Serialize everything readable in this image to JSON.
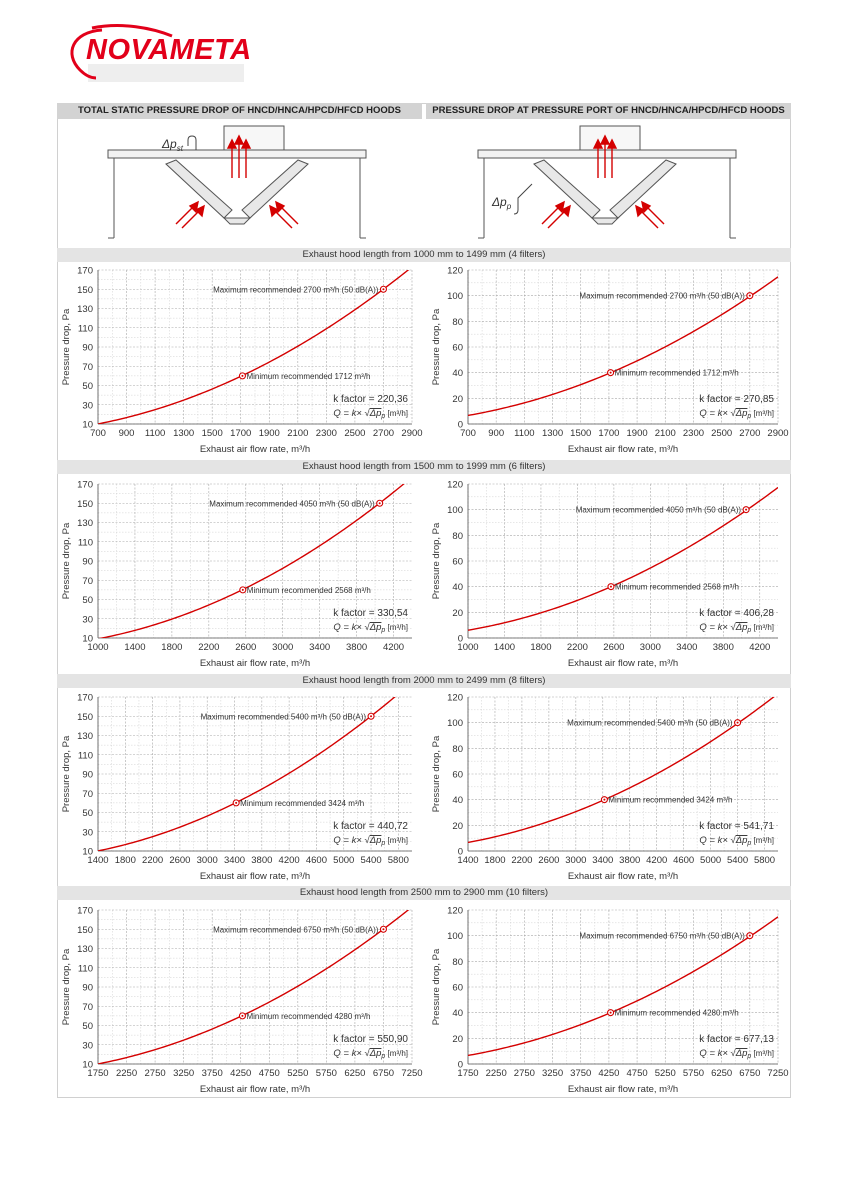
{
  "brand": {
    "name": "NOVAMETA",
    "color": "#e2001a"
  },
  "headers": {
    "left": "TOTAL STATIC PRESSURE DROP OF HNCD/HNCA/HPCD/HFCD HOODS",
    "right": "PRESSURE DROP AT PRESSURE PORT OF HNCD/HNCA/HPCD/HFCD HOODS"
  },
  "diagrams": {
    "left_symbol": "Δp",
    "left_subscript": "st",
    "right_symbol": "Δp",
    "right_subscript": "p"
  },
  "sections": [
    "Exhaust hood length from 1000 mm to 1499 mm (4 filters)",
    "Exhaust hood length from 1500 mm to 1999 mm (6 filters)",
    "Exhaust hood length from 2000 mm to 2499 mm (8 filters)",
    "Exhaust hood length from 2500 mm to 2900 mm (10 filters)"
  ],
  "formula": {
    "prefix": "Q = k× √",
    "radicand": "Δp",
    "subscript": "p",
    "unit": "[m³/h]"
  },
  "chart_data": [
    {
      "type": "line",
      "title": "",
      "xlabel": "Exhaust air flow rate, m³/h",
      "ylabel": "Pressure drop, Pa",
      "xlim": [
        700,
        2900
      ],
      "ylim": [
        10,
        170
      ],
      "xticks": [
        700,
        900,
        1100,
        1300,
        1500,
        1700,
        1900,
        2100,
        2300,
        2500,
        2700,
        2900
      ],
      "yticks": [
        10,
        30,
        50,
        70,
        90,
        110,
        130,
        150,
        170
      ],
      "k_label": "k factor = 220,36",
      "k": 220.36,
      "grid": true,
      "min_point": {
        "x": 1712,
        "y": 60,
        "label": "Minimum recommended 1712 m³/h"
      },
      "max_point": {
        "x": 2700,
        "y": 150,
        "label": "Maximum recommended 2700 m³/h (50 dB(A))"
      }
    },
    {
      "type": "line",
      "title": "",
      "xlabel": "Exhaust air flow rate, m³/h",
      "ylabel": "Pressure drop, Pa",
      "xlim": [
        700,
        2900
      ],
      "ylim": [
        0,
        120
      ],
      "xticks": [
        700,
        900,
        1100,
        1300,
        1500,
        1700,
        1900,
        2100,
        2300,
        2500,
        2700,
        2900
      ],
      "yticks": [
        0,
        20,
        40,
        60,
        80,
        100,
        120
      ],
      "k_label": "k factor = 270,85",
      "k": 270.85,
      "grid": true,
      "min_point": {
        "x": 1712,
        "y": 40,
        "label": "Minimum recommended 1712 m³/h"
      },
      "max_point": {
        "x": 2700,
        "y": 100,
        "label": "Maximum recommended 2700 m³/h (50 dB(A))"
      }
    },
    {
      "type": "line",
      "title": "",
      "xlabel": "Exhaust air flow rate, m³/h",
      "ylabel": "Pressure drop, Pa",
      "xlim": [
        1000,
        4400
      ],
      "ylim": [
        10,
        170
      ],
      "xticks": [
        1000,
        1400,
        1800,
        2200,
        2600,
        3000,
        3400,
        3800,
        4200
      ],
      "yticks": [
        10,
        30,
        50,
        70,
        90,
        110,
        130,
        150,
        170
      ],
      "k_label": "k factor = 330,54",
      "k": 330.54,
      "grid": true,
      "min_point": {
        "x": 2568,
        "y": 60,
        "label": "Minimum recommended 2568 m³/h"
      },
      "max_point": {
        "x": 4050,
        "y": 150,
        "label": "Maximum recommended 4050 m³/h (50 dB(A))"
      }
    },
    {
      "type": "line",
      "title": "",
      "xlabel": "Exhaust air flow rate, m³/h",
      "ylabel": "Pressure drop, Pa",
      "xlim": [
        1000,
        4400
      ],
      "ylim": [
        0,
        120
      ],
      "xticks": [
        1000,
        1400,
        1800,
        2200,
        2600,
        3000,
        3400,
        3800,
        4200
      ],
      "yticks": [
        0,
        20,
        40,
        60,
        80,
        100,
        120
      ],
      "k_label": "k factor = 406,28",
      "k": 406.28,
      "grid": true,
      "min_point": {
        "x": 2568,
        "y": 40,
        "label": "Minimum recommended 2568 m³/h"
      },
      "max_point": {
        "x": 4050,
        "y": 100,
        "label": "Maximum recommended 4050 m³/h (50 dB(A))"
      }
    },
    {
      "type": "line",
      "title": "",
      "xlabel": "Exhaust air flow rate, m³/h",
      "ylabel": "Pressure drop, Pa",
      "xlim": [
        1400,
        6000
      ],
      "ylim": [
        10,
        170
      ],
      "xticks": [
        1400,
        1800,
        2200,
        2600,
        3000,
        3400,
        3800,
        4200,
        4600,
        5000,
        5400,
        5800
      ],
      "yticks": [
        10,
        30,
        50,
        70,
        90,
        110,
        130,
        150,
        170
      ],
      "k_label": "k factor = 440,72",
      "k": 440.72,
      "grid": true,
      "min_point": {
        "x": 3424,
        "y": 60,
        "label": "Minimum recommended 3424 m³/h"
      },
      "max_point": {
        "x": 5400,
        "y": 150,
        "label": "Maximum recommended 5400 m³/h (50 dB(A))"
      }
    },
    {
      "type": "line",
      "title": "",
      "xlabel": "Exhaust air flow rate, m³/h",
      "ylabel": "Pressure drop, Pa",
      "xlim": [
        1400,
        6000
      ],
      "ylim": [
        0,
        120
      ],
      "xticks": [
        1400,
        1800,
        2200,
        2600,
        3000,
        3400,
        3800,
        4200,
        4600,
        5000,
        5400,
        5800
      ],
      "yticks": [
        0,
        20,
        40,
        60,
        80,
        100,
        120
      ],
      "k_label": "k factor = 541,71",
      "k": 541.71,
      "grid": true,
      "min_point": {
        "x": 3424,
        "y": 40,
        "label": "Minimum recommended 3424 m³/h"
      },
      "max_point": {
        "x": 5400,
        "y": 100,
        "label": "Maximum recommended 5400 m³/h (50 dB(A))"
      }
    },
    {
      "type": "line",
      "title": "",
      "xlabel": "Exhaust air flow rate, m³/h",
      "ylabel": "Pressure drop, Pa",
      "xlim": [
        1750,
        7250
      ],
      "ylim": [
        10,
        170
      ],
      "xticks": [
        1750,
        2250,
        2750,
        3250,
        3750,
        4250,
        4750,
        5250,
        5750,
        6250,
        6750,
        7250
      ],
      "yticks": [
        10,
        30,
        50,
        70,
        90,
        110,
        130,
        150,
        170
      ],
      "k_label": "k factor = 550,90",
      "k": 550.9,
      "grid": true,
      "min_point": {
        "x": 4280,
        "y": 60,
        "label": "Minimum recommended 4280 m³/h"
      },
      "max_point": {
        "x": 6750,
        "y": 150,
        "label": "Maximum recommended 6750 m³/h (50 dB(A))"
      }
    },
    {
      "type": "line",
      "title": "",
      "xlabel": "Exhaust air flow rate, m³/h",
      "ylabel": "Pressure drop, Pa",
      "xlim": [
        1750,
        7250
      ],
      "ylim": [
        0,
        120
      ],
      "xticks": [
        1750,
        2250,
        2750,
        3250,
        3750,
        4250,
        4750,
        5250,
        5750,
        6250,
        6750,
        7250
      ],
      "yticks": [
        0,
        20,
        40,
        60,
        80,
        100,
        120
      ],
      "k_label": "k factor = 677,13",
      "k": 677.13,
      "grid": true,
      "min_point": {
        "x": 4280,
        "y": 40,
        "label": "Minimum recommended 4280 m³/h"
      },
      "max_point": {
        "x": 6750,
        "y": 100,
        "label": "Maximum recommended 6750 m³/h (50 dB(A))"
      }
    }
  ]
}
